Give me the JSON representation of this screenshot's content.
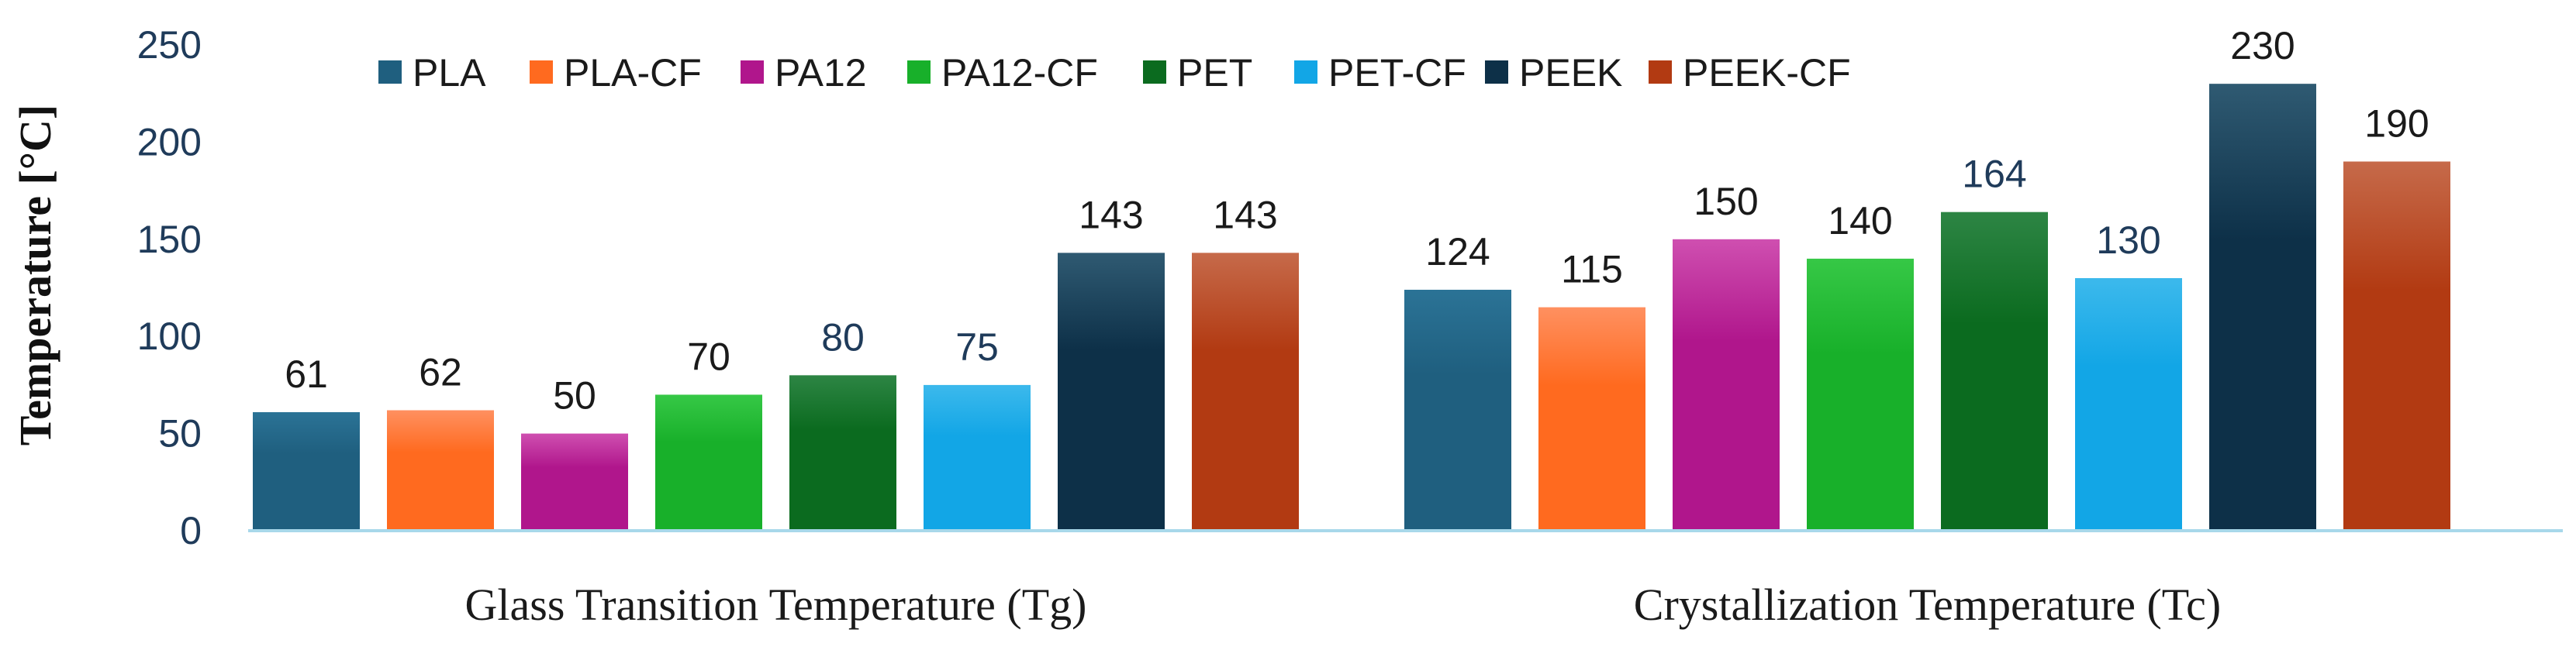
{
  "chart_data": {
    "type": "bar",
    "title": "",
    "xlabel": "",
    "ylabel": "Temperature [°C]",
    "ylim": [
      0,
      250
    ],
    "yticks": [
      0,
      50,
      100,
      150,
      200,
      250
    ],
    "grid": false,
    "legend_position": "top",
    "categories": [
      "Glass Transition Temperature (Tg)",
      "Crystallization Temperature (Tc)"
    ],
    "series": [
      {
        "name": "PLA",
        "color": "#1f5f7f",
        "color_light": "#2b7396",
        "values": [
          61,
          124
        ],
        "label_colors": [
          "#1a1a1a",
          "#1a1a1a"
        ]
      },
      {
        "name": "PLA-CF",
        "color": "#ff6a1f",
        "color_light": "#ff9060",
        "values": [
          62,
          115
        ],
        "label_colors": [
          "#1a1a1a",
          "#1a1a1a"
        ]
      },
      {
        "name": "PA12",
        "color": "#b0168c",
        "color_light": "#cf4fb0",
        "values": [
          50,
          150
        ],
        "label_colors": [
          "#1a1a1a",
          "#1a1a1a"
        ]
      },
      {
        "name": "PA12-CF",
        "color": "#18b02a",
        "color_light": "#36c846",
        "values": [
          70,
          140
        ],
        "label_colors": [
          "#1a1a1a",
          "#1a1a1a"
        ]
      },
      {
        "name": "PET",
        "color": "#0b6b1f",
        "color_light": "#2d8544",
        "values": [
          80,
          164
        ],
        "label_colors": [
          "#1f3b5a",
          "#1f3b5a"
        ]
      },
      {
        "name": "PET-CF",
        "color": "#12a6e6",
        "color_light": "#3cb9ec",
        "values": [
          75,
          130
        ],
        "label_colors": [
          "#1f3b5a",
          "#1f3b5a"
        ]
      },
      {
        "name": "PEEK",
        "color": "#0d3048",
        "color_light": "#2f5a72",
        "values": [
          143,
          230
        ],
        "label_colors": [
          "#1a1a1a",
          "#1a1a1a"
        ]
      },
      {
        "name": "PEEK-CF",
        "color": "#b23a12",
        "color_light": "#c66a4a",
        "values": [
          143,
          190
        ],
        "label_colors": [
          "#1a1a1a",
          "#1a1a1a"
        ]
      }
    ]
  }
}
